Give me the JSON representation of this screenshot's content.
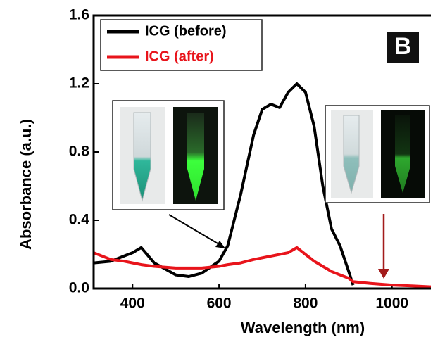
{
  "chart_data": {
    "type": "line",
    "x_label": "Wavelength (nm)",
    "y_label": "Absorbance (a.u.)",
    "panel_label": "B",
    "x": [
      310,
      350,
      380,
      400,
      420,
      450,
      500,
      530,
      560,
      600,
      620,
      650,
      680,
      700,
      720,
      740,
      760,
      780,
      800,
      820,
      840,
      860,
      880,
      900,
      910,
      950,
      1000,
      1050,
      1090
    ],
    "series": [
      {
        "name": "ICG (before)",
        "color": "#000000",
        "values": [
          0.15,
          0.16,
          0.19,
          0.21,
          0.24,
          0.15,
          0.08,
          0.07,
          0.09,
          0.16,
          0.25,
          0.55,
          0.9,
          1.05,
          1.08,
          1.06,
          1.15,
          1.2,
          1.15,
          0.95,
          0.6,
          0.35,
          0.25,
          0.1,
          0.02,
          null,
          null,
          null,
          null
        ]
      },
      {
        "name": "ICG (after)",
        "color": "#e8141b",
        "values": [
          0.21,
          0.17,
          0.16,
          0.15,
          0.14,
          0.13,
          0.12,
          0.12,
          0.12,
          0.13,
          0.14,
          0.15,
          0.17,
          0.18,
          0.19,
          0.2,
          0.21,
          0.24,
          0.2,
          0.16,
          0.13,
          0.1,
          0.08,
          0.06,
          0.04,
          0.03,
          0.02,
          0.015,
          0.01
        ]
      }
    ],
    "xlim": [
      310,
      1090
    ],
    "ylim": [
      0,
      1.6
    ],
    "xticks": [
      400,
      600,
      800,
      1000
    ],
    "yticks": [
      {
        "value": 0,
        "label": "0.0"
      },
      0.4,
      0.8,
      1.2,
      1.6
    ],
    "legend": "upper left"
  }
}
